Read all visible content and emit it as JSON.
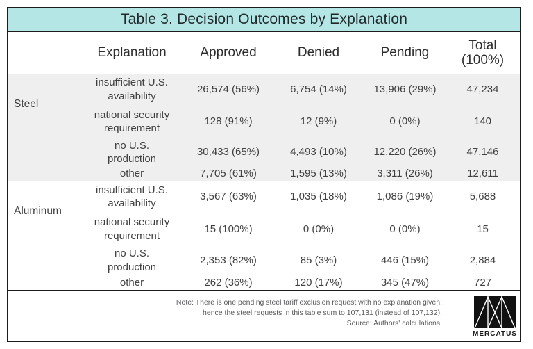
{
  "chart_data": {
    "type": "table",
    "title": "Table 3. Decision Outcomes by Explanation",
    "column_headers": {
      "material": "",
      "explanation": "Explanation",
      "approved": "Approved",
      "denied": "Denied",
      "pending": "Pending",
      "total": "Total\n(100%)"
    },
    "sections": [
      {
        "material": "Steel",
        "rows": [
          {
            "explanation": "insufficient U.S.\navailability",
            "approved": "26,574 (56%)",
            "denied": "6,754 (14%)",
            "pending": "13,906 (29%)",
            "total": "47,234"
          },
          {
            "explanation": "national security\nrequirement",
            "approved": "128 (91%)",
            "denied": "12 (9%)",
            "pending": "0 (0%)",
            "total": "140"
          },
          {
            "explanation": "no U.S.\nproduction",
            "approved": "30,433 (65%)",
            "denied": "4,493 (10%)",
            "pending": "12,220 (26%)",
            "total": "47,146"
          },
          {
            "explanation": "other",
            "approved": "7,705 (61%)",
            "denied": "1,595 (13%)",
            "pending": "3,311 (26%)",
            "total": "12,611"
          }
        ]
      },
      {
        "material": "Aluminum",
        "rows": [
          {
            "explanation": "insufficient U.S.\navailability",
            "approved": "3,567 (63%)",
            "denied": "1,035 (18%)",
            "pending": "1,086 (19%)",
            "total": "5,688"
          },
          {
            "explanation": "national security\nrequirement",
            "approved": "15 (100%)",
            "denied": "0 (0%)",
            "pending": "0 (0%)",
            "total": "15"
          },
          {
            "explanation": "no U.S.\nproduction",
            "approved": "2,353 (82%)",
            "denied": "85 (3%)",
            "pending": "446 (15%)",
            "total": "2,884"
          },
          {
            "explanation": "other",
            "approved": "262 (36%)",
            "denied": "120 (17%)",
            "pending": "345 (47%)",
            "total": "727"
          }
        ]
      }
    ],
    "note_lines": [
      "Note: There is one pending steel tariff exclusion request with no explanation given;",
      "hence the steel requests in this table sum to 107,131 (instead of 107,132).",
      "Source: Authors' calculations."
    ]
  },
  "branding": {
    "logo_text": "MERCATUS"
  },
  "colors": {
    "title_bg": "#b5e6e6",
    "steel_section_bg": "#efefef",
    "border": "#1b1b1b",
    "body_text": "#3f3f3f",
    "note_text": "#58595b"
  }
}
